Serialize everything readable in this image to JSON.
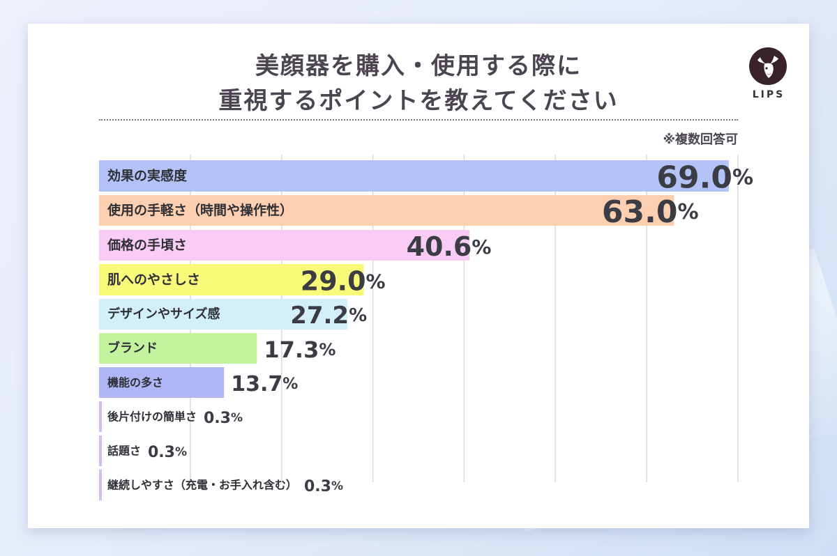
{
  "title_line1": "美顔器を購入・使用する際に",
  "title_line2": "重視するポイントを教えてください",
  "note": "※複数回答可",
  "logo_text": "LIPS",
  "chart_data": {
    "type": "bar",
    "orientation": "horizontal",
    "title": "美顔器を購入・使用する際に重視するポイントを教えてください",
    "categories": [
      "効果の実感度",
      "使用の手軽さ（時間や操作性）",
      "価格の手頃さ",
      "肌へのやさしさ",
      "デザインやサイズ感",
      "ブランド",
      "機能の多さ",
      "後片付けの簡単さ",
      "話題さ",
      "継続しやすさ（充電・お手入れ含む）"
    ],
    "values": [
      69.0,
      63.0,
      40.6,
      29.0,
      27.2,
      17.3,
      13.7,
      0.3,
      0.3,
      0.3
    ],
    "value_labels": [
      "69.0",
      "63.0",
      "40.6",
      "29.0",
      "27.2",
      "17.3",
      "13.7",
      "0.3",
      "0.3",
      "0.3"
    ],
    "unit": "%",
    "colors": [
      "#b4c3f7",
      "#fccfb0",
      "#f8ccf4",
      "#fafa7a",
      "#d2effa",
      "#c4f3a0",
      "#afb6f5",
      "#d6baf2",
      "#d6baf2",
      "#d6baf2"
    ],
    "xlim": [
      0,
      70
    ],
    "grid": true,
    "grid_color": "#d9d9df",
    "legend": "none"
  }
}
